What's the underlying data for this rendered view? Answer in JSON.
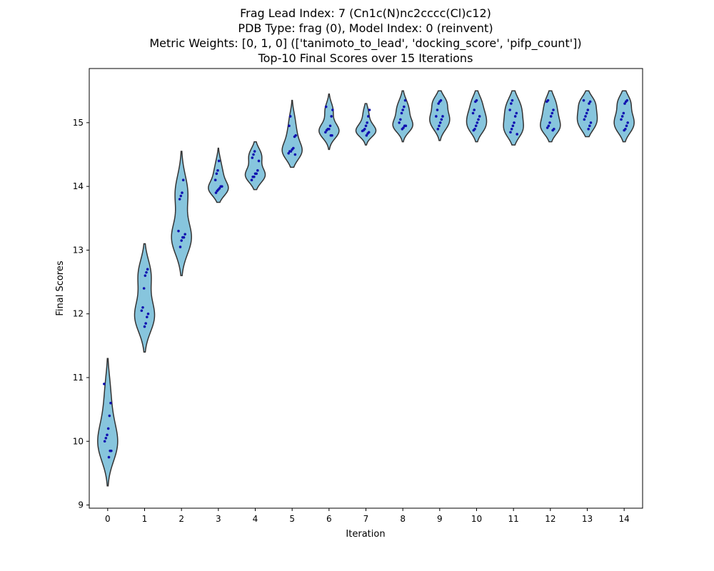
{
  "chart_data": {
    "type": "violin",
    "title_lines": [
      "Frag Lead Index: 7 (Cn1c(N)nc2cccc(Cl)c12)",
      "PDB Type: frag (0), Model Index: 0 (reinvent)",
      "Metric Weights: [0, 1, 0] (['tanimoto_to_lead', 'docking_score', 'pifp_count'])",
      "Top-10 Final Scores over 15 Iterations"
    ],
    "xlabel": "Iteration",
    "ylabel": "Final Scores",
    "categories": [
      "0",
      "1",
      "2",
      "3",
      "4",
      "5",
      "6",
      "7",
      "8",
      "9",
      "10",
      "11",
      "12",
      "13",
      "14"
    ],
    "ylim": [
      8.95,
      15.85
    ],
    "yticks": [
      9,
      10,
      11,
      12,
      13,
      14,
      15
    ],
    "violin_color": "#87c5dd",
    "violin_edge_color": "#333333",
    "point_color": "#1010b0",
    "series": [
      {
        "iteration": "0",
        "range": [
          9.3,
          11.3
        ],
        "values": [
          10.9,
          10.6,
          10.4,
          10.2,
          10.1,
          10.05,
          10.0,
          9.85,
          9.85,
          9.75
        ]
      },
      {
        "iteration": "1",
        "range": [
          11.4,
          13.1
        ],
        "values": [
          12.7,
          12.65,
          12.6,
          12.4,
          12.1,
          12.05,
          12.0,
          11.95,
          11.85,
          11.8
        ]
      },
      {
        "iteration": "2",
        "range": [
          12.6,
          14.55
        ],
        "values": [
          14.1,
          13.9,
          13.85,
          13.8,
          13.3,
          13.25,
          13.2,
          13.2,
          13.15,
          13.05
        ]
      },
      {
        "iteration": "3",
        "range": [
          13.75,
          14.6
        ],
        "values": [
          14.4,
          14.25,
          14.2,
          14.1,
          14.0,
          14.0,
          13.97,
          13.95,
          13.93,
          13.9
        ]
      },
      {
        "iteration": "4",
        "range": [
          13.95,
          14.7
        ],
        "values": [
          14.55,
          14.5,
          14.45,
          14.4,
          14.25,
          14.2,
          14.2,
          14.15,
          14.15,
          14.1
        ]
      },
      {
        "iteration": "5",
        "range": [
          14.3,
          15.35
        ],
        "values": [
          15.1,
          14.95,
          14.8,
          14.78,
          14.6,
          14.58,
          14.55,
          14.55,
          14.52,
          14.5
        ]
      },
      {
        "iteration": "6",
        "range": [
          14.58,
          15.45
        ],
        "values": [
          15.25,
          15.2,
          15.1,
          14.95,
          14.9,
          14.9,
          14.88,
          14.85,
          14.8,
          14.8
        ]
      },
      {
        "iteration": "7",
        "range": [
          14.65,
          15.3
        ],
        "values": [
          15.2,
          15.1,
          15.0,
          14.95,
          14.9,
          14.88,
          14.87,
          14.85,
          14.83,
          14.8
        ]
      },
      {
        "iteration": "8",
        "range": [
          14.7,
          15.5
        ],
        "values": [
          15.35,
          15.25,
          15.2,
          15.15,
          15.05,
          15.0,
          14.95,
          14.95,
          14.92,
          14.9
        ]
      },
      {
        "iteration": "9",
        "range": [
          14.72,
          15.5
        ],
        "values": [
          15.35,
          15.33,
          15.3,
          15.2,
          15.1,
          15.1,
          15.05,
          15.0,
          14.95,
          14.9
        ]
      },
      {
        "iteration": "10",
        "range": [
          14.7,
          15.5
        ],
        "values": [
          15.35,
          15.33,
          15.2,
          15.15,
          15.1,
          15.05,
          15.0,
          14.95,
          14.9,
          14.88
        ]
      },
      {
        "iteration": "11",
        "range": [
          14.65,
          15.5
        ],
        "values": [
          15.35,
          15.3,
          15.2,
          15.15,
          15.1,
          15.0,
          14.95,
          14.9,
          14.85,
          14.82
        ]
      },
      {
        "iteration": "12",
        "range": [
          14.7,
          15.5
        ],
        "values": [
          15.35,
          15.33,
          15.2,
          15.15,
          15.1,
          15.0,
          14.95,
          14.92,
          14.9,
          14.88
        ]
      },
      {
        "iteration": "13",
        "range": [
          14.78,
          15.5
        ],
        "values": [
          15.35,
          15.33,
          15.3,
          15.2,
          15.15,
          15.1,
          15.05,
          15.0,
          14.95,
          14.9
        ]
      },
      {
        "iteration": "14",
        "range": [
          14.7,
          15.5
        ],
        "values": [
          15.35,
          15.33,
          15.3,
          15.15,
          15.1,
          15.05,
          15.0,
          14.95,
          14.9,
          14.88
        ]
      }
    ]
  }
}
